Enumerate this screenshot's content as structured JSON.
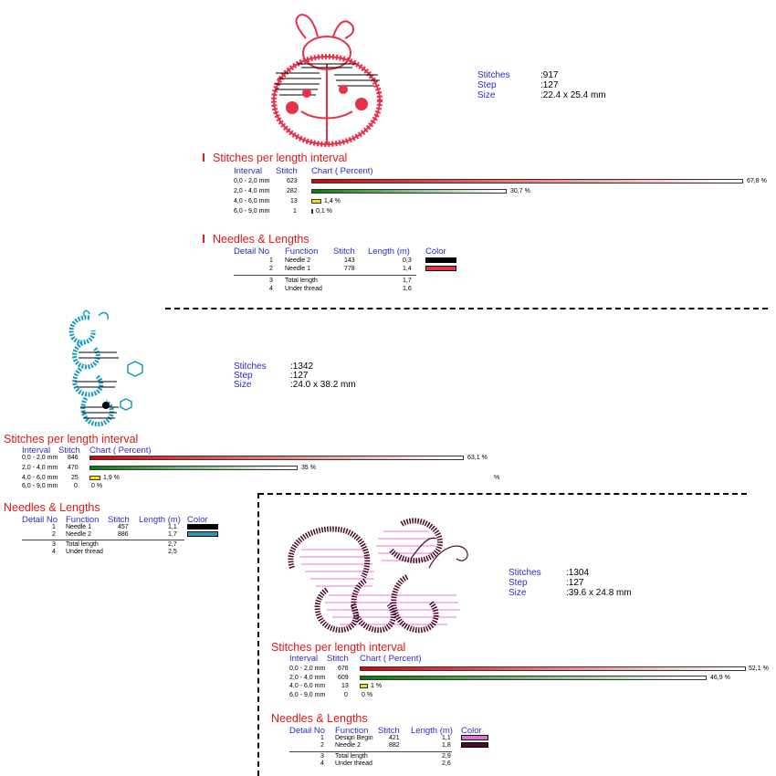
{
  "designs": [
    {
      "id": "ladybug",
      "stats": {
        "stitches_label": "Stitches",
        "stitches": ":917",
        "step_label": "Step",
        "step": ":127",
        "size_label": "Size",
        "size": ":22.4 x 25.4 mm"
      },
      "spl_title": "Stitches per length interval",
      "spl_headers": {
        "interval": "Interval",
        "stitch": "Stitch",
        "chart": "Chart ( Percent)"
      },
      "intervals": [
        {
          "label": "0,0 - 2,0 mm",
          "stitch": "623",
          "percent": 67.8,
          "pct_label": "67,8 %"
        },
        {
          "label": "2,0 - 4,0 mm",
          "stitch": "282",
          "percent": 30.7,
          "pct_label": "30,7 %"
        },
        {
          "label": "4,0 - 6,0 mm",
          "stitch": "13",
          "percent": 1.4,
          "pct_label": "1,4 %"
        },
        {
          "label": "6,0 - 9,0 mm",
          "stitch": "1",
          "percent": 0.1,
          "pct_label": "0,1 %"
        }
      ],
      "nl_title": "Needles & Lengths",
      "nl_headers": {
        "detail": "Detail No",
        "function": "Function",
        "stitch": "Stitch",
        "length": "Length (m)",
        "color": "Color"
      },
      "needles": [
        {
          "no": "1",
          "function": "Needle 2",
          "stitch": "143",
          "length": "0,3",
          "color": "#000000"
        },
        {
          "no": "2",
          "function": "Needle 1",
          "stitch": "778",
          "length": "1,4",
          "color": "#e8304a"
        }
      ],
      "totals": [
        {
          "no": "3",
          "function": "Total length",
          "length": "1,7"
        },
        {
          "no": "4",
          "function": "Under thread",
          "length": "1,6"
        }
      ]
    },
    {
      "id": "caterpillar",
      "stats": {
        "stitches_label": "Stitches",
        "stitches": ":1342",
        "step_label": "Step",
        "step": ":127",
        "size_label": "Size",
        "size": ":24.0 x 38.2 mm"
      },
      "spl_title": "Stitches per length interval",
      "spl_headers": {
        "interval": "Interval",
        "stitch": "Stitch",
        "chart": "Chart ( Percent)"
      },
      "intervals": [
        {
          "label": "0,0 - 2,0 mm",
          "stitch": "846",
          "percent": 63.1,
          "pct_label": "63,1 %"
        },
        {
          "label": "2,0 - 4,0 mm",
          "stitch": "470",
          "percent": 35,
          "pct_label": "35 %"
        },
        {
          "label": "4,0 - 6,0 mm",
          "stitch": "25",
          "percent": 1.9,
          "pct_label": "1,9 %"
        },
        {
          "label": "6,0 - 9,0 mm",
          "stitch": "0",
          "percent": 0,
          "pct_label": "0 %"
        }
      ],
      "stray": "%",
      "nl_title": "Needles & Lengths",
      "nl_headers": {
        "detail": "Detail No",
        "function": "Function",
        "stitch": "Stitch",
        "length": "Length (m)",
        "color": "Color"
      },
      "needles": [
        {
          "no": "1",
          "function": "Needle 1",
          "stitch": "457",
          "length": "1,1",
          "color": "#000000"
        },
        {
          "no": "2",
          "function": "Needle 2",
          "stitch": "886",
          "length": "1,7",
          "color": "#1a9bc0"
        }
      ],
      "totals": [
        {
          "no": "3",
          "function": "Total length",
          "length": "2,7"
        },
        {
          "no": "4",
          "function": "Under thread",
          "length": "2,5"
        }
      ]
    },
    {
      "id": "bee",
      "stats": {
        "stitches_label": "Stitches",
        "stitches": ":1304",
        "step_label": "Step",
        "step": ":127",
        "size_label": "Size",
        "size": ":39.6 x 24.8 mm"
      },
      "spl_title": "Stitches per length interval",
      "spl_headers": {
        "interval": "Interval",
        "stitch": "Stitch",
        "chart": "Chart ( Percent)"
      },
      "intervals": [
        {
          "label": "0,0 - 2,0 mm",
          "stitch": "676",
          "percent": 52.1,
          "pct_label": "52,1 %"
        },
        {
          "label": "2,0 - 4,0 mm",
          "stitch": "609",
          "percent": 46.9,
          "pct_label": "46,9 %"
        },
        {
          "label": "4,0 - 6,0 mm",
          "stitch": "13",
          "percent": 1,
          "pct_label": "1 %"
        },
        {
          "label": "6,0 - 9,0 mm",
          "stitch": "0",
          "percent": 0,
          "pct_label": "0 %"
        }
      ],
      "nl_title": "Needles & Lengths",
      "nl_headers": {
        "detail": "Detail No",
        "function": "Function",
        "stitch": "Stitch",
        "length": "Length (m)",
        "color": "Color"
      },
      "needles": [
        {
          "no": "1",
          "function": "Design Begin",
          "stitch": "421",
          "length": "1,1",
          "color": "#e070d8"
        },
        {
          "no": "2",
          "function": "Needle 2",
          "stitch": "882",
          "length": "1,8",
          "color": "#4a0a2a"
        }
      ],
      "totals": [
        {
          "no": "3",
          "function": "Total length",
          "length": "2,9"
        },
        {
          "no": "4",
          "function": "Under thread",
          "length": "2,6"
        }
      ]
    }
  ]
}
